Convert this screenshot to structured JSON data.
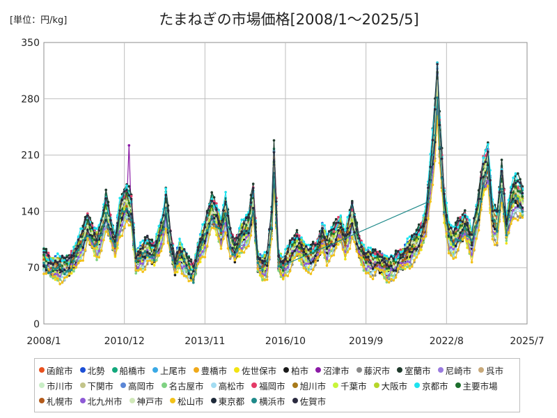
{
  "chart_data": {
    "type": "line",
    "title": "たまねぎの市場価格[2008/1～2025/5]",
    "unit": "[単位：円/kg]",
    "xlabel": "",
    "ylabel": "",
    "x_range": [
      "2008/1",
      "2025/7"
    ],
    "ylim": [
      0,
      350
    ],
    "y_ticks": [
      0,
      70,
      140,
      210,
      280,
      350
    ],
    "x_ticks": [
      "2008/1",
      "2010/12",
      "2013/11",
      "2016/10",
      "2019/9",
      "2022/8",
      "2025/7"
    ],
    "grid": true,
    "legend_position": "bottom",
    "reference_monthly": [
      [
        2008,
        1,
        78
      ],
      [
        2008,
        4,
        72
      ],
      [
        2008,
        7,
        70
      ],
      [
        2008,
        10,
        68
      ],
      [
        2008,
        12,
        72
      ],
      [
        2009,
        3,
        88
      ],
      [
        2009,
        6,
        102
      ],
      [
        2009,
        8,
        120
      ],
      [
        2009,
        10,
        110
      ],
      [
        2009,
        12,
        100
      ],
      [
        2010,
        2,
        112
      ],
      [
        2010,
        4,
        140
      ],
      [
        2010,
        6,
        118
      ],
      [
        2010,
        8,
        100
      ],
      [
        2010,
        10,
        132
      ],
      [
        2011,
        1,
        150
      ],
      [
        2011,
        3,
        140
      ],
      [
        2011,
        5,
        80
      ],
      [
        2011,
        8,
        85
      ],
      [
        2011,
        10,
        92
      ],
      [
        2012,
        1,
        88
      ],
      [
        2012,
        3,
        105
      ],
      [
        2012,
        5,
        120
      ],
      [
        2012,
        6,
        145
      ],
      [
        2012,
        8,
        100
      ],
      [
        2012,
        10,
        75
      ],
      [
        2012,
        12,
        88
      ],
      [
        2013,
        2,
        78
      ],
      [
        2013,
        4,
        68
      ],
      [
        2013,
        6,
        62
      ],
      [
        2013,
        8,
        90
      ],
      [
        2013,
        11,
        108
      ],
      [
        2014,
        2,
        140
      ],
      [
        2014,
        4,
        132
      ],
      [
        2014,
        6,
        115
      ],
      [
        2014,
        8,
        138
      ],
      [
        2014,
        10,
        100
      ],
      [
        2014,
        12,
        92
      ],
      [
        2015,
        3,
        110
      ],
      [
        2015,
        6,
        118
      ],
      [
        2015,
        8,
        150
      ],
      [
        2015,
        10,
        80
      ],
      [
        2015,
        12,
        70
      ],
      [
        2016,
        2,
        75
      ],
      [
        2016,
        4,
        125
      ],
      [
        2016,
        5,
        195
      ],
      [
        2016,
        7,
        80
      ],
      [
        2016,
        9,
        70
      ],
      [
        2016,
        12,
        85
      ],
      [
        2017,
        3,
        100
      ],
      [
        2017,
        5,
        92
      ],
      [
        2017,
        8,
        80
      ],
      [
        2017,
        11,
        85
      ],
      [
        2018,
        2,
        110
      ],
      [
        2018,
        4,
        95
      ],
      [
        2018,
        7,
        105
      ],
      [
        2018,
        10,
        120
      ],
      [
        2018,
        12,
        100
      ],
      [
        2019,
        3,
        130
      ],
      [
        2019,
        6,
        95
      ],
      [
        2019,
        9,
        80
      ],
      [
        2019,
        12,
        75
      ],
      [
        2020,
        3,
        78
      ],
      [
        2020,
        6,
        70
      ],
      [
        2020,
        9,
        70
      ],
      [
        2020,
        12,
        80
      ],
      [
        2021,
        3,
        88
      ],
      [
        2021,
        6,
        95
      ],
      [
        2021,
        9,
        108
      ],
      [
        2021,
        11,
        130
      ],
      [
        2022,
        1,
        180
      ],
      [
        2022,
        3,
        240
      ],
      [
        2022,
        4,
        295
      ],
      [
        2022,
        5,
        230
      ],
      [
        2022,
        7,
        150
      ],
      [
        2022,
        9,
        110
      ],
      [
        2022,
        11,
        100
      ],
      [
        2023,
        1,
        110
      ],
      [
        2023,
        4,
        125
      ],
      [
        2023,
        7,
        100
      ],
      [
        2023,
        10,
        140
      ],
      [
        2023,
        12,
        185
      ],
      [
        2024,
        2,
        200
      ],
      [
        2024,
        4,
        130
      ],
      [
        2024,
        6,
        120
      ],
      [
        2024,
        8,
        175
      ],
      [
        2024,
        10,
        120
      ],
      [
        2024,
        12,
        150
      ],
      [
        2025,
        2,
        160
      ],
      [
        2025,
        4,
        155
      ],
      [
        2025,
        5,
        150
      ]
    ],
    "series": [
      {
        "name": "函館市",
        "color": "#e8501e"
      },
      {
        "name": "北勢",
        "color": "#1c4fd6"
      },
      {
        "name": "船橋市",
        "color": "#13a87c"
      },
      {
        "name": "上尾市",
        "color": "#3aa9e5"
      },
      {
        "name": "豊橋市",
        "color": "#efa91a"
      },
      {
        "name": "佐世保市",
        "color": "#f2e313"
      },
      {
        "name": "柏市",
        "color": "#1a1a1a"
      },
      {
        "name": "沼津市",
        "color": "#8b1aa6"
      },
      {
        "name": "藤沢市",
        "color": "#8a8a8a"
      },
      {
        "name": "室蘭市",
        "color": "#1f3a2c"
      },
      {
        "name": "尼崎市",
        "color": "#9a7be0"
      },
      {
        "name": "呉市",
        "color": "#c8a97a"
      },
      {
        "name": "市川市",
        "color": "#c9eec6"
      },
      {
        "name": "下関市",
        "color": "#c2c48a"
      },
      {
        "name": "高岡市",
        "color": "#5b86d6"
      },
      {
        "name": "名古屋市",
        "color": "#7fd283"
      },
      {
        "name": "高松市",
        "color": "#a3dcf2"
      },
      {
        "name": "福岡市",
        "color": "#e43a67"
      },
      {
        "name": "旭川市",
        "color": "#a87a1a"
      },
      {
        "name": "千葉市",
        "color": "#c8f53a"
      },
      {
        "name": "大阪市",
        "color": "#b6d62a"
      },
      {
        "name": "京都市",
        "color": "#1ee3ef"
      },
      {
        "name": "主要市場",
        "color": "#1c6e2c"
      },
      {
        "name": "札幌市",
        "color": "#b35a1a"
      },
      {
        "name": "北九州市",
        "color": "#8e5ad6"
      },
      {
        "name": "神戸市",
        "color": "#d0e8b8"
      },
      {
        "name": "松山市",
        "color": "#f2c21a"
      },
      {
        "name": "東京都",
        "color": "#1e2a3a"
      },
      {
        "name": "横浜市",
        "color": "#1f8a8a"
      },
      {
        "name": "佐賀市",
        "color": "#2b2b40"
      }
    ]
  }
}
